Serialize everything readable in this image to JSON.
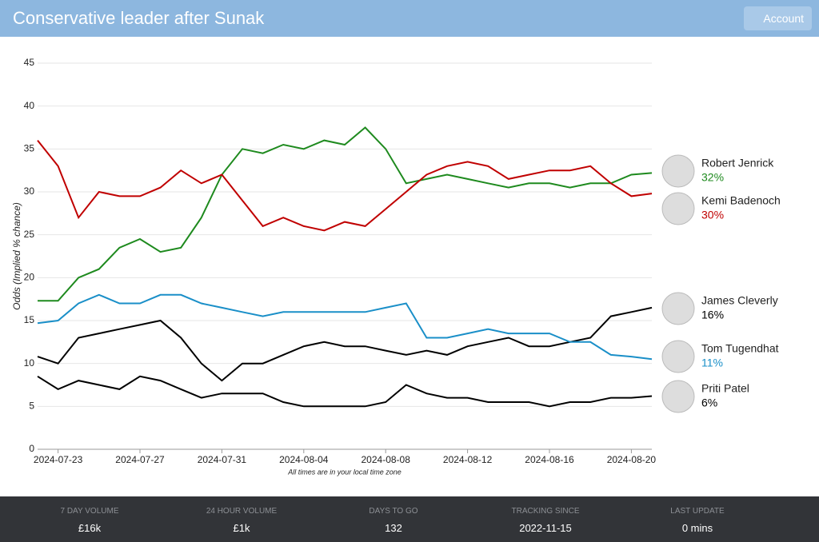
{
  "header": {
    "title": "Conservative leader after Sunak",
    "account": "Account"
  },
  "chart_data": {
    "type": "line",
    "y_label": "Odds (Implied % chance)",
    "note": "All times are in your local time zone",
    "x": [
      "2024-07-22",
      "2024-07-23",
      "2024-07-24",
      "2024-07-25",
      "2024-07-26",
      "2024-07-27",
      "2024-07-28",
      "2024-07-29",
      "2024-07-30",
      "2024-07-31",
      "2024-08-01",
      "2024-08-02",
      "2024-08-03",
      "2024-08-04",
      "2024-08-05",
      "2024-08-06",
      "2024-08-07",
      "2024-08-08",
      "2024-08-09",
      "2024-08-10",
      "2024-08-11",
      "2024-08-12",
      "2024-08-13",
      "2024-08-14",
      "2024-08-15",
      "2024-08-16",
      "2024-08-17",
      "2024-08-18",
      "2024-08-19",
      "2024-08-20",
      "2024-08-21"
    ],
    "xlim": [
      "2024-07-22",
      "2024-08-21"
    ],
    "xticks": [
      "2024-07-23",
      "2024-07-27",
      "2024-07-31",
      "2024-08-04",
      "2024-08-08",
      "2024-08-12",
      "2024-08-16",
      "2024-08-20"
    ],
    "ylim": [
      0,
      45
    ],
    "yticks": [
      0,
      5,
      10,
      15,
      20,
      25,
      30,
      35,
      40,
      45
    ],
    "grid": true,
    "series": [
      {
        "name": "Robert Jenrick",
        "color": "#1e8a1e",
        "latest_label": "32%",
        "values": [
          17.3,
          17.3,
          20,
          21,
          23.5,
          24.5,
          23,
          23.5,
          27,
          32,
          35,
          34.5,
          35.5,
          35,
          36,
          35.5,
          37.5,
          35,
          31,
          31.5,
          32,
          31.5,
          31,
          30.5,
          31,
          31,
          30.5,
          31,
          31,
          32,
          32.2
        ]
      },
      {
        "name": "Kemi Badenoch",
        "color": "#c00000",
        "latest_label": "30%",
        "values": [
          36,
          33,
          27,
          30,
          29.5,
          29.5,
          30.5,
          32.5,
          31,
          32,
          29,
          26,
          27,
          26,
          25.5,
          26.5,
          26,
          28,
          30,
          32,
          33,
          33.5,
          33,
          31.5,
          32,
          32.5,
          32.5,
          33,
          31,
          29.5,
          29.8
        ]
      },
      {
        "name": "James Cleverly",
        "color": "#000000",
        "latest_label": "16%",
        "values": [
          10.8,
          10,
          13,
          13.5,
          14,
          14.5,
          15,
          13,
          10,
          8,
          10,
          10,
          11,
          12,
          12.5,
          12,
          12,
          11.5,
          11,
          11.5,
          11,
          12,
          12.5,
          13,
          12,
          12,
          12.5,
          13,
          15.5,
          16,
          16.5
        ]
      },
      {
        "name": "Tom Tugendhat",
        "color": "#1a8fc8",
        "latest_label": "11%",
        "values": [
          14.7,
          15,
          17,
          18,
          17,
          17,
          18,
          18,
          17,
          16.5,
          16,
          15.5,
          16,
          16,
          16,
          16,
          16,
          16.5,
          17,
          13,
          13,
          13.5,
          14,
          13.5,
          13.5,
          13.5,
          12.5,
          12.5,
          11,
          10.8,
          10.5
        ]
      },
      {
        "name": "Priti Patel",
        "color": "#000000",
        "latest_label": "6%",
        "values": [
          8.5,
          7,
          8,
          7.5,
          7,
          8.5,
          8,
          7,
          6,
          6.5,
          6.5,
          6.5,
          5.5,
          5,
          5,
          5,
          5,
          5.5,
          7.5,
          6.5,
          6,
          6,
          5.5,
          5.5,
          5.5,
          5,
          5.5,
          5.5,
          6,
          6,
          6.2
        ]
      }
    ]
  },
  "footer": {
    "stats": [
      {
        "label": "7 DAY VOLUME",
        "value": "£16k"
      },
      {
        "label": "24 HOUR VOLUME",
        "value": "£1k"
      },
      {
        "label": "DAYS TO GO",
        "value": "132"
      },
      {
        "label": "TRACKING SINCE",
        "value": "2022-11-15"
      },
      {
        "label": "LAST UPDATE",
        "value": "0 mins"
      }
    ]
  }
}
